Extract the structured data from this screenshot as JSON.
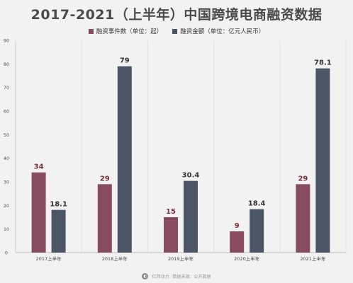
{
  "colors": {
    "count": "#894b60",
    "amount": "#4c5566",
    "label_count": "#7a2e3c",
    "label_amount": "#333333"
  },
  "chart_data": {
    "type": "bar",
    "title": "2017-2021（上半年）中国跨境电商融资数据",
    "categories": [
      "2017上半年",
      "2018上半年",
      "2019上半年",
      "2020上半年",
      "2021上半年"
    ],
    "series": [
      {
        "name": "融资事件数（单位：起）",
        "values": [
          34,
          29,
          15,
          9,
          29
        ]
      },
      {
        "name": "融资金额（单位：亿元人民币）",
        "values": [
          18.1,
          79,
          30.4,
          18.4,
          78.1
        ]
      }
    ],
    "data_labels": [
      [
        "34",
        "29",
        "15",
        "9",
        "29"
      ],
      [
        "18.1",
        "79",
        "30.4",
        "18.4",
        "78.1"
      ]
    ],
    "ylim": [
      0,
      90
    ],
    "yticks": [
      0,
      10,
      20,
      30,
      40,
      50,
      60,
      70,
      80,
      90
    ],
    "grid": "vertical separators between categories",
    "legend_position": "top-center"
  },
  "footer": {
    "brand": "亿邦动力",
    "source": "数据来源：公开数据"
  }
}
